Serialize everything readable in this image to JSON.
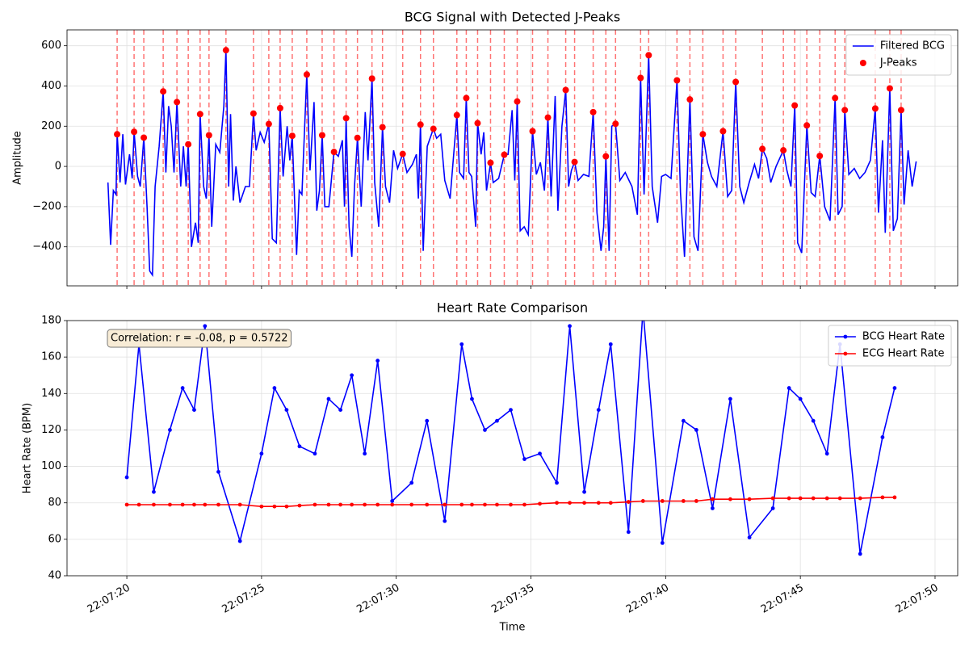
{
  "chart_data": [
    {
      "type": "line",
      "title": "BCG Signal with Detected J-Peaks",
      "ylabel": "Amplitude",
      "xlim": [
        17.78,
        50.84
      ],
      "ylim": [
        -594,
        679
      ],
      "yticks": [
        {
          "value": -400,
          "label": "−400"
        },
        {
          "value": -200,
          "label": "−200"
        },
        0,
        200,
        400,
        600
      ],
      "grid": true,
      "legend": "upper right",
      "peak_lines": true,
      "series": [
        {
          "name": "Filtered BCG",
          "color": "#0000ff",
          "mode": "line",
          "x": [
            19.3,
            19.4,
            19.5,
            19.6,
            19.64,
            19.75,
            19.85,
            19.95,
            20.1,
            20.2,
            20.27,
            20.4,
            20.5,
            20.63,
            20.75,
            20.85,
            20.95,
            21.05,
            21.2,
            21.35,
            21.45,
            21.55,
            21.65,
            21.75,
            21.86,
            22.0,
            22.1,
            22.2,
            22.28,
            22.4,
            22.55,
            22.65,
            22.72,
            22.85,
            22.95,
            23.05,
            23.15,
            23.3,
            23.45,
            23.6,
            23.68,
            23.78,
            23.85,
            23.95,
            24.05,
            24.2,
            24.4,
            24.55,
            24.7,
            24.8,
            24.95,
            25.1,
            25.27,
            25.4,
            25.55,
            25.69,
            25.8,
            25.95,
            26.05,
            26.14,
            26.3,
            26.4,
            26.5,
            26.68,
            26.8,
            26.95,
            27.05,
            27.15,
            27.25,
            27.35,
            27.5,
            27.69,
            27.85,
            28.0,
            28.08,
            28.14,
            28.25,
            28.35,
            28.45,
            28.56,
            28.7,
            28.85,
            28.95,
            29.1,
            29.2,
            29.35,
            29.49,
            29.6,
            29.75,
            29.9,
            30.05,
            30.24,
            30.4,
            30.6,
            30.75,
            30.82,
            30.9,
            31.0,
            31.15,
            31.38,
            31.5,
            31.65,
            31.8,
            32.0,
            32.25,
            32.35,
            32.5,
            32.6,
            32.7,
            32.8,
            32.95,
            33.02,
            33.15,
            33.25,
            33.35,
            33.5,
            33.6,
            33.8,
            34.01,
            34.15,
            34.3,
            34.4,
            34.49,
            34.6,
            34.75,
            34.9,
            35.06,
            35.2,
            35.35,
            35.5,
            35.63,
            35.75,
            35.9,
            36.0,
            36.15,
            36.29,
            36.4,
            36.5,
            36.62,
            36.75,
            36.95,
            37.15,
            37.31,
            37.45,
            37.6,
            37.7,
            37.78,
            37.9,
            38.0,
            38.14,
            38.3,
            38.5,
            38.75,
            38.95,
            39.07,
            39.2,
            39.37,
            39.5,
            39.7,
            39.85,
            40.0,
            40.2,
            40.42,
            40.55,
            40.7,
            40.9,
            41.05,
            41.2,
            41.38,
            41.55,
            41.7,
            41.9,
            42.13,
            42.3,
            42.45,
            42.6,
            42.75,
            42.9,
            43.1,
            43.3,
            43.45,
            43.59,
            43.75,
            43.9,
            44.1,
            44.37,
            44.5,
            44.65,
            44.79,
            44.9,
            45.05,
            45.24,
            45.4,
            45.55,
            45.72,
            45.9,
            46.1,
            46.29,
            46.4,
            46.55,
            46.65,
            46.8,
            47.0,
            47.2,
            47.4,
            47.6,
            47.78,
            47.9,
            48.05,
            48.15,
            48.32,
            48.45,
            48.6,
            48.74,
            48.85,
            49.0,
            49.15,
            49.3
          ],
          "values": [
            -80,
            -390,
            -120,
            -140,
            160,
            -80,
            160,
            -90,
            60,
            -60,
            172,
            -50,
            -100,
            143,
            -200,
            -520,
            -540,
            -100,
            100,
            373,
            -30,
            300,
            200,
            -30,
            320,
            -100,
            100,
            -100,
            110,
            -400,
            -280,
            -380,
            260,
            -100,
            -160,
            155,
            -300,
            110,
            70,
            300,
            578,
            -100,
            260,
            -170,
            0,
            -180,
            -100,
            -100,
            263,
            80,
            170,
            120,
            211,
            -360,
            -380,
            290,
            -50,
            200,
            30,
            152,
            -440,
            -120,
            -140,
            457,
            -20,
            320,
            -220,
            -120,
            155,
            -200,
            -200,
            72,
            50,
            130,
            -200,
            240,
            -300,
            -450,
            -100,
            142,
            -200,
            270,
            30,
            437,
            -80,
            -300,
            195,
            -100,
            -180,
            80,
            -10,
            62,
            -30,
            10,
            60,
            -160,
            208,
            -420,
            100,
            187,
            140,
            160,
            -70,
            -160,
            255,
            -30,
            -60,
            340,
            -30,
            -50,
            -300,
            215,
            60,
            170,
            -120,
            18,
            -80,
            -60,
            58,
            60,
            280,
            -70,
            323,
            -320,
            -300,
            -340,
            175,
            -40,
            20,
            -120,
            243,
            -150,
            350,
            -220,
            200,
            380,
            -100,
            -20,
            22,
            -70,
            -40,
            -50,
            270,
            -230,
            -420,
            -300,
            50,
            -420,
            200,
            212,
            -70,
            -30,
            -100,
            -240,
            440,
            -140,
            553,
            -100,
            -280,
            -50,
            -40,
            -60,
            428,
            -130,
            -450,
            333,
            -350,
            -420,
            160,
            20,
            -50,
            -100,
            175,
            -150,
            -120,
            420,
            -100,
            -180,
            -80,
            10,
            -60,
            87,
            40,
            -80,
            0,
            80,
            -20,
            -100,
            303,
            -380,
            -430,
            204,
            -130,
            -150,
            52,
            -200,
            -270,
            340,
            -240,
            -200,
            280,
            -40,
            -10,
            -60,
            -30,
            30,
            288,
            -230,
            130,
            -330,
            388,
            -320,
            -260,
            280,
            -190,
            80,
            -100,
            25
          ]
        },
        {
          "name": "J-Peaks",
          "color": "#ff0000",
          "mode": "markers",
          "x": [
            19.64,
            20.27,
            20.63,
            21.35,
            21.86,
            22.28,
            22.72,
            23.05,
            23.68,
            24.7,
            25.27,
            25.69,
            26.14,
            26.68,
            27.25,
            27.69,
            28.14,
            28.56,
            29.1,
            29.49,
            30.24,
            30.9,
            31.38,
            32.25,
            32.6,
            33.02,
            33.5,
            34.01,
            34.49,
            35.06,
            35.63,
            36.29,
            36.62,
            37.31,
            37.78,
            38.14,
            39.07,
            39.37,
            40.42,
            40.9,
            41.38,
            42.13,
            42.6,
            43.59,
            44.37,
            44.79,
            45.24,
            45.72,
            46.29,
            46.65,
            47.78,
            48.32,
            48.74
          ],
          "values": [
            160,
            172,
            143,
            373,
            320,
            110,
            260,
            155,
            578,
            263,
            211,
            290,
            152,
            457,
            155,
            72,
            240,
            142,
            437,
            195,
            62,
            208,
            187,
            255,
            340,
            215,
            18,
            58,
            323,
            175,
            243,
            380,
            22,
            270,
            50,
            212,
            440,
            553,
            428,
            333,
            160,
            175,
            420,
            87,
            80,
            303,
            204,
            52,
            340,
            280,
            288,
            388,
            280
          ]
        }
      ]
    },
    {
      "type": "line",
      "title": "Heart Rate Comparison",
      "ylabel": "Heart Rate (BPM)",
      "xlabel": "Time",
      "xlim": [
        17.78,
        50.84
      ],
      "ylim": [
        40,
        180
      ],
      "xticks": [
        {
          "value": 20,
          "label": "22:07:20"
        },
        {
          "value": 25,
          "label": "22:07:25"
        },
        {
          "value": 30,
          "label": "22:07:30"
        },
        {
          "value": 35,
          "label": "22:07:35"
        },
        {
          "value": 40,
          "label": "22:07:40"
        },
        {
          "value": 45,
          "label": "22:07:45"
        },
        {
          "value": 50,
          "label": "22:07:50"
        }
      ],
      "yticks": [
        40,
        60,
        80,
        100,
        120,
        140,
        160,
        180
      ],
      "grid": true,
      "legend": "upper right",
      "annotation": "Correlation: r = -0.08, p = 0.5722",
      "series": [
        {
          "name": "BCG Heart Rate",
          "color": "#0000ff",
          "mode": "line+markers",
          "x": [
            20.0,
            20.45,
            21.0,
            21.6,
            22.07,
            22.5,
            22.9,
            23.4,
            24.2,
            25.0,
            25.48,
            25.93,
            26.41,
            26.98,
            27.49,
            27.93,
            28.35,
            28.83,
            29.31,
            29.85,
            30.57,
            31.14,
            31.8,
            32.43,
            32.81,
            33.29,
            33.74,
            34.25,
            34.76,
            35.33,
            35.96,
            36.44,
            36.98,
            37.51,
            37.96,
            38.62,
            39.16,
            39.88,
            40.66,
            41.14,
            41.74,
            42.4,
            43.11,
            43.98,
            44.58,
            45.0,
            45.48,
            45.99,
            46.47,
            47.22,
            48.05,
            48.5
          ],
          "values": [
            94,
            167,
            86,
            120,
            143,
            131,
            177,
            97,
            59,
            107,
            143,
            131,
            111,
            107,
            137,
            131,
            150,
            107,
            158,
            81,
            91,
            125,
            70,
            167,
            137,
            120,
            125,
            131,
            104,
            107,
            91,
            177,
            86,
            131,
            167,
            64,
            186,
            58,
            125,
            120,
            77,
            137,
            61,
            77,
            143,
            137,
            125,
            107,
            167,
            52,
            116,
            143
          ]
        },
        {
          "name": "ECG Heart Rate",
          "color": "#ff0000",
          "mode": "line+markers",
          "x": [
            20.0,
            20.45,
            21.0,
            21.6,
            22.07,
            22.5,
            22.9,
            23.4,
            24.2,
            25.0,
            25.48,
            25.93,
            26.41,
            26.98,
            27.49,
            27.93,
            28.35,
            28.83,
            29.31,
            29.85,
            30.57,
            31.14,
            31.8,
            32.43,
            32.81,
            33.29,
            33.74,
            34.25,
            34.76,
            35.33,
            35.96,
            36.44,
            36.98,
            37.51,
            37.96,
            38.62,
            39.16,
            39.88,
            40.66,
            41.14,
            41.74,
            42.4,
            43.11,
            43.98,
            44.58,
            45.0,
            45.48,
            45.99,
            46.47,
            47.22,
            48.05,
            48.5
          ],
          "values": [
            79,
            79,
            79,
            79,
            79,
            79,
            79,
            79,
            79,
            78,
            78,
            78,
            78.5,
            79,
            79,
            79,
            79,
            79,
            79,
            79,
            79,
            79,
            79,
            79,
            79,
            79,
            79,
            79,
            79,
            79.5,
            80,
            80,
            80,
            80,
            80,
            80.5,
            81,
            81,
            81,
            81,
            82,
            82,
            82,
            82.5,
            82.5,
            82.5,
            82.5,
            82.5,
            82.5,
            82.5,
            83,
            83
          ]
        }
      ]
    }
  ]
}
